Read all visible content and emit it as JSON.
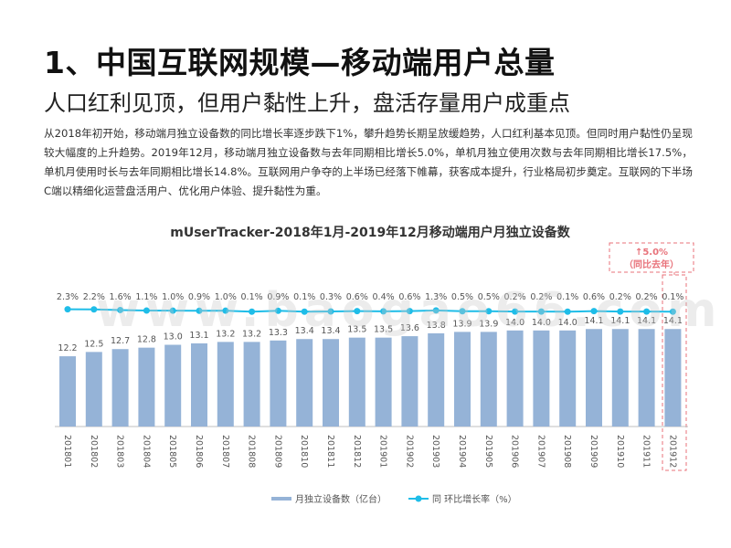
{
  "slide": {
    "title": "1、中国互联网规模—移动端用户总量",
    "subtitle": "人口红利见顶，但用户黏性上升，盘活存量用户成重点",
    "paragraph": "从2018年初开始，移动端月独立设备数的同比增长率逐步跌下1%，攀升趋势长期呈放缓趋势，人口红利基本见顶。但同时用户黏性仍呈现较大幅度的上升趋势。2019年12月，移动端月独立设备数与去年同期相比增长5.0%，单机月独立使用次数与去年同期相比增长17.5%，单机月使用时长与去年同期相比增长14.8%。互联网用户争夺的上半场已经落下帷幕，获客成本提升，行业格局初步奠定。互联网的下半场C端以精细化运营盘活用户、优化用户体验、提升黏性为重。",
    "watermark": "www.baogao66.com"
  },
  "chart_data": {
    "type": "bar",
    "title": "mUserTracker-2018年1月-2019年12月移动端用户月独立设备数",
    "categories": [
      "201801",
      "201802",
      "201803",
      "201804",
      "201805",
      "201806",
      "201807",
      "201808",
      "201809",
      "201810",
      "201811",
      "201812",
      "201901",
      "201902",
      "201903",
      "201904",
      "201905",
      "201906",
      "201907",
      "201908",
      "201909",
      "201910",
      "201911",
      "201912"
    ],
    "series": [
      {
        "name": "月独立设备数（亿台）",
        "kind": "bar",
        "color": "#95b3d7",
        "values": [
          12.2,
          12.5,
          12.7,
          12.8,
          13.0,
          13.1,
          13.2,
          13.2,
          13.3,
          13.4,
          13.4,
          13.5,
          13.5,
          13.6,
          13.8,
          13.9,
          13.9,
          14.0,
          14.0,
          14.0,
          14.1,
          14.1,
          14.1,
          14.1
        ]
      },
      {
        "name": "同 环比增长率（%）",
        "kind": "line",
        "color": "#1fbde8",
        "values": [
          2.3,
          2.2,
          1.6,
          1.1,
          1.0,
          0.9,
          1.0,
          0.1,
          0.9,
          0.1,
          0.3,
          0.6,
          0.4,
          0.6,
          1.3,
          0.5,
          0.5,
          0.2,
          0.2,
          0.1,
          0.6,
          0.2,
          0.2,
          0.1
        ],
        "labels": [
          "2.3%",
          "2.2%",
          "1.6%",
          "1.1%",
          "1.0%",
          "0.9%",
          "1.0%",
          "0.1%",
          "0.9%",
          "0.1%",
          "0.3%",
          "0.6%",
          "0.4%",
          "0.6%",
          "1.3%",
          "0.5%",
          "0.5%",
          "0.2%",
          "0.2%",
          "0.1%",
          "0.6%",
          "0.2%",
          "0.2%",
          "0.1%"
        ]
      }
    ],
    "bar_labels": [
      "12.2",
      "12.5",
      "12.7",
      "12.8",
      "13.0",
      "13.1",
      "13.2",
      "13.2",
      "13.3",
      "13.4",
      "13.4",
      "13.5",
      "13.5",
      "13.6",
      "13.8",
      "13.9",
      "13.9",
      "14.0",
      "14.0",
      "14.0",
      "14.1",
      "14.1",
      "14.1",
      "14.1"
    ],
    "callout": {
      "line1": "↑5.0%",
      "line2": "（同比去年）",
      "color": "#e8727a"
    },
    "legend_position": "bottom",
    "grid": false
  }
}
